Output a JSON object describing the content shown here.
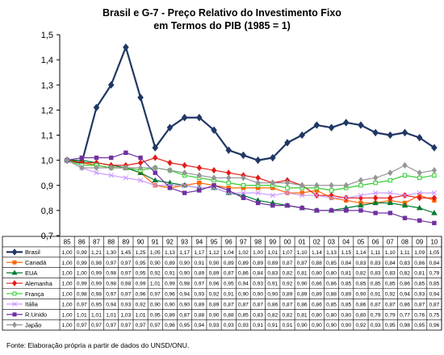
{
  "title_line1": "Brasil e G-7 - Preço Relativo do Investimento Fixo",
  "title_line2": "em Termos do PIB (1985 = 1)",
  "source": "Fonte: Elaboração própria a partir de dados do UNSD/ONU.",
  "chart_data": {
    "type": "line",
    "title": "Brasil e G-7 - Preço Relativo do Investimento Fixo em Termos do PIB (1985 = 1)",
    "categories": [
      "85",
      "86",
      "87",
      "88",
      "89",
      "90",
      "91",
      "92",
      "93",
      "94",
      "95",
      "96",
      "97",
      "98",
      "99",
      "00",
      "01",
      "02",
      "03",
      "04",
      "05",
      "06",
      "07",
      "08",
      "09",
      "10"
    ],
    "ylim": [
      0.7,
      1.5
    ],
    "yticks": [
      "0,7",
      "0,8",
      "0,9",
      "1,0",
      "1,1",
      "1,2",
      "1,3",
      "1,4",
      "1,5"
    ],
    "yticks_values": [
      0.7,
      0.8,
      0.9,
      1.0,
      1.1,
      1.2,
      1.3,
      1.4,
      1.5
    ],
    "grid": "none",
    "legend": "data-table",
    "series": [
      {
        "name": "Brasil",
        "color": "#1F3864",
        "marker": "diamond",
        "width": 2.2,
        "labels": [
          "1,00",
          "0,99",
          "1,21",
          "1,30",
          "1,45",
          "1,25",
          "1,05",
          "1,13",
          "1,17",
          "1,17",
          "1,12",
          "1,04",
          "1,02",
          "1,00",
          "1,01",
          "1,07",
          "1,10",
          "1,14",
          "1,13",
          "1,15",
          "1,14",
          "1,11",
          "1,10",
          "1,11",
          "1,09",
          "1,05"
        ],
        "values": [
          1.0,
          0.99,
          1.21,
          1.3,
          1.45,
          1.25,
          1.05,
          1.13,
          1.17,
          1.17,
          1.12,
          1.04,
          1.02,
          1.0,
          1.01,
          1.07,
          1.1,
          1.14,
          1.13,
          1.15,
          1.14,
          1.11,
          1.1,
          1.11,
          1.09,
          1.05
        ]
      },
      {
        "name": "Canadá",
        "color": "#FF6600",
        "marker": "square",
        "width": 1.2,
        "labels": [
          "1,00",
          "0,99",
          "0,98",
          "0,97",
          "0,97",
          "0,95",
          "0,90",
          "0,89",
          "0,90",
          "0,91",
          "0,90",
          "0,89",
          "0,89",
          "0,89",
          "0,89",
          "0,87",
          "0,87",
          "0,88",
          "0,85",
          "0,84",
          "0,83",
          "0,83",
          "0,84",
          "0,83",
          "0,86",
          "0,84"
        ],
        "values": [
          1.0,
          0.99,
          0.98,
          0.97,
          0.97,
          0.95,
          0.9,
          0.89,
          0.9,
          0.91,
          0.9,
          0.89,
          0.89,
          0.89,
          0.89,
          0.87,
          0.87,
          0.88,
          0.85,
          0.84,
          0.83,
          0.83,
          0.84,
          0.83,
          0.86,
          0.84
        ]
      },
      {
        "name": "EUA",
        "color": "#007A33",
        "marker": "triangle",
        "width": 1.2,
        "labels": [
          "1,00",
          "1,00",
          "0,99",
          "0,98",
          "0,97",
          "0,95",
          "0,92",
          "0,91",
          "0,90",
          "0,89",
          "0,89",
          "0,87",
          "0,86",
          "0,84",
          "0,83",
          "0,82",
          "0,81",
          "0,80",
          "0,80",
          "0,81",
          "0,82",
          "0,83",
          "0,83",
          "0,82",
          "0,81",
          "0,79"
        ],
        "values": [
          1.0,
          1.0,
          0.99,
          0.98,
          0.97,
          0.95,
          0.92,
          0.91,
          0.9,
          0.89,
          0.89,
          0.87,
          0.86,
          0.84,
          0.83,
          0.82,
          0.81,
          0.8,
          0.8,
          0.81,
          0.82,
          0.83,
          0.83,
          0.82,
          0.81,
          0.79
        ]
      },
      {
        "name": "Alemanha",
        "color": "#E41B17",
        "marker": "diamond",
        "width": 1.2,
        "labels": [
          "1,00",
          "0,99",
          "0,99",
          "0,98",
          "0,98",
          "0,99",
          "1,01",
          "0,99",
          "0,98",
          "0,97",
          "0,96",
          "0,95",
          "0,94",
          "0,93",
          "0,91",
          "0,92",
          "0,90",
          "0,86",
          "0,86",
          "0,85",
          "0,85",
          "0,85",
          "0,85",
          "0,86",
          "0,85",
          "0,85"
        ],
        "values": [
          1.0,
          0.99,
          0.99,
          0.98,
          0.98,
          0.99,
          1.01,
          0.99,
          0.98,
          0.97,
          0.96,
          0.95,
          0.94,
          0.93,
          0.91,
          0.92,
          0.9,
          0.86,
          0.86,
          0.85,
          0.85,
          0.85,
          0.85,
          0.86,
          0.85,
          0.85
        ]
      },
      {
        "name": "França",
        "color": "#33CC33",
        "marker": "square-open",
        "width": 1.2,
        "labels": [
          "1,00",
          "0,98",
          "0,98",
          "0,97",
          "0,97",
          "0,96",
          "0,97",
          "0,96",
          "0,94",
          "0,93",
          "0,92",
          "0,91",
          "0,90",
          "0,90",
          "0,90",
          "0,89",
          "0,89",
          "0,89",
          "0,88",
          "0,89",
          "0,90",
          "0,91",
          "0,92",
          "0,94",
          "0,93",
          "0,94"
        ],
        "values": [
          1.0,
          0.98,
          0.98,
          0.97,
          0.97,
          0.96,
          0.97,
          0.96,
          0.94,
          0.93,
          0.92,
          0.91,
          0.9,
          0.9,
          0.9,
          0.89,
          0.89,
          0.89,
          0.88,
          0.89,
          0.9,
          0.91,
          0.92,
          0.94,
          0.93,
          0.94
        ]
      },
      {
        "name": "Itália",
        "color": "#CC99FF",
        "marker": "cross",
        "width": 1.2,
        "labels": [
          "1,00",
          "0,97",
          "0,95",
          "0,94",
          "0,93",
          "0,92",
          "0,90",
          "0,90",
          "0,90",
          "0,89",
          "0,89",
          "0,87",
          "0,87",
          "0,87",
          "0,86",
          "0,87",
          "0,86",
          "0,86",
          "0,85",
          "0,85",
          "0,86",
          "0,87",
          "0,87",
          "0,86",
          "0,87",
          "0,87"
        ],
        "values": [
          1.0,
          0.97,
          0.95,
          0.94,
          0.93,
          0.92,
          0.9,
          0.9,
          0.9,
          0.89,
          0.89,
          0.87,
          0.87,
          0.87,
          0.86,
          0.87,
          0.86,
          0.86,
          0.85,
          0.85,
          0.86,
          0.87,
          0.87,
          0.86,
          0.87,
          0.87
        ]
      },
      {
        "name": "R.Unido",
        "color": "#7030A0",
        "marker": "square",
        "width": 1.2,
        "labels": [
          "1,00",
          "1,01",
          "1,01",
          "1,01",
          "1,03",
          "1,01",
          "0,95",
          "0,89",
          "0,87",
          "0,88",
          "0,90",
          "0,88",
          "0,85",
          "0,83",
          "0,82",
          "0,82",
          "0,81",
          "0,80",
          "0,80",
          "0,80",
          "0,80",
          "0,79",
          "0,79",
          "0,77",
          "0,76",
          "0,75"
        ],
        "values": [
          1.0,
          1.01,
          1.01,
          1.01,
          1.03,
          1.01,
          0.95,
          0.89,
          0.87,
          0.88,
          0.9,
          0.88,
          0.85,
          0.83,
          0.82,
          0.82,
          0.81,
          0.8,
          0.8,
          0.8,
          0.8,
          0.79,
          0.79,
          0.77,
          0.76,
          0.75
        ]
      },
      {
        "name": "Japão",
        "color": "#969696",
        "marker": "diamond",
        "width": 1.2,
        "labels": [
          "1,00",
          "0,97",
          "0,97",
          "0,97",
          "0,97",
          "0,97",
          "0,97",
          "0,96",
          "0,95",
          "0,94",
          "0,93",
          "0,93",
          "0,93",
          "0,91",
          "0,91",
          "0,91",
          "0,90",
          "0,90",
          "0,90",
          "0,90",
          "0,92",
          "0,93",
          "0,95",
          "0,98",
          "0,95",
          "0,96"
        ],
        "values": [
          1.0,
          0.97,
          0.97,
          0.97,
          0.97,
          0.97,
          0.97,
          0.96,
          0.95,
          0.94,
          0.93,
          0.93,
          0.93,
          0.91,
          0.91,
          0.91,
          0.9,
          0.9,
          0.9,
          0.9,
          0.92,
          0.93,
          0.95,
          0.98,
          0.95,
          0.96
        ]
      }
    ]
  }
}
